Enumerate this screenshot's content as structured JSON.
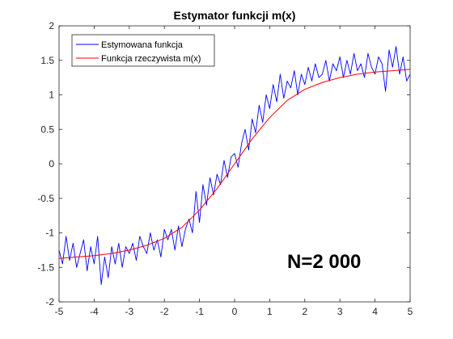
{
  "chart_data": {
    "type": "line",
    "title": "Estymator funkcji m(x)",
    "xlabel": "",
    "ylabel": "",
    "xlim": [
      -5,
      5
    ],
    "ylim": [
      -2,
      2
    ],
    "x_ticks": [
      -5,
      -4,
      -3,
      -2,
      -1,
      0,
      1,
      2,
      3,
      4,
      5
    ],
    "y_ticks": [
      -2,
      -1.5,
      -1,
      -0.5,
      0,
      0.5,
      1,
      1.5,
      2
    ],
    "grid": false,
    "legend_position": "top-left",
    "annotation": "N=2 000",
    "series": [
      {
        "name": "Estymowana funkcja",
        "color": "#0000ff",
        "x": [
          -5.0,
          -4.9,
          -4.8,
          -4.7,
          -4.6,
          -4.5,
          -4.4,
          -4.3,
          -4.2,
          -4.1,
          -4.0,
          -3.9,
          -3.8,
          -3.7,
          -3.6,
          -3.5,
          -3.4,
          -3.3,
          -3.2,
          -3.1,
          -3.0,
          -2.9,
          -2.8,
          -2.7,
          -2.6,
          -2.5,
          -2.4,
          -2.3,
          -2.2,
          -2.1,
          -2.0,
          -1.9,
          -1.8,
          -1.7,
          -1.6,
          -1.5,
          -1.4,
          -1.3,
          -1.2,
          -1.1,
          -1.0,
          -0.9,
          -0.8,
          -0.7,
          -0.6,
          -0.5,
          -0.4,
          -0.3,
          -0.2,
          -0.1,
          0.0,
          0.1,
          0.2,
          0.3,
          0.4,
          0.5,
          0.6,
          0.7,
          0.8,
          0.9,
          1.0,
          1.1,
          1.2,
          1.3,
          1.4,
          1.5,
          1.6,
          1.7,
          1.8,
          1.9,
          2.0,
          2.1,
          2.2,
          2.3,
          2.4,
          2.5,
          2.6,
          2.7,
          2.8,
          2.9,
          3.0,
          3.1,
          3.2,
          3.3,
          3.4,
          3.5,
          3.6,
          3.7,
          3.8,
          3.9,
          4.0,
          4.1,
          4.2,
          4.3,
          4.4,
          4.5,
          4.6,
          4.7,
          4.8,
          4.9,
          5.0
        ],
        "y": [
          -1.25,
          -1.45,
          -1.05,
          -1.4,
          -1.15,
          -1.5,
          -1.3,
          -1.1,
          -1.55,
          -1.2,
          -1.45,
          -1.05,
          -1.75,
          -1.35,
          -1.65,
          -1.2,
          -1.45,
          -1.15,
          -1.5,
          -1.2,
          -1.3,
          -1.15,
          -1.4,
          -1.05,
          -1.2,
          -1.3,
          -1.0,
          -1.25,
          -1.1,
          -1.35,
          -0.95,
          -1.1,
          -0.95,
          -1.25,
          -0.9,
          -1.2,
          -0.95,
          -0.8,
          -1.0,
          -0.4,
          -0.85,
          -0.3,
          -0.6,
          -0.2,
          -0.45,
          -0.15,
          -0.3,
          0.05,
          -0.2,
          0.1,
          0.15,
          -0.05,
          0.3,
          0.5,
          0.2,
          0.65,
          0.45,
          0.85,
          0.6,
          1.0,
          0.8,
          1.15,
          0.9,
          1.3,
          0.95,
          1.2,
          1.1,
          1.35,
          1.0,
          1.3,
          1.15,
          1.4,
          1.2,
          1.45,
          1.25,
          1.3,
          1.5,
          1.2,
          1.45,
          1.35,
          1.55,
          1.25,
          1.5,
          1.3,
          1.6,
          1.35,
          1.45,
          1.25,
          1.6,
          1.4,
          1.3,
          1.55,
          1.45,
          1.05,
          1.65,
          1.4,
          1.7,
          1.3,
          1.55,
          1.2,
          1.3
        ]
      },
      {
        "name": "Funkcja rzeczywista m(x)",
        "color": "#ff0000",
        "x": [
          -5.0,
          -4.5,
          -4.0,
          -3.5,
          -3.0,
          -2.5,
          -2.0,
          -1.5,
          -1.0,
          -0.5,
          0.0,
          0.5,
          1.0,
          1.5,
          2.0,
          2.5,
          3.0,
          3.5,
          4.0,
          4.5,
          5.0
        ],
        "y": [
          -1.37,
          -1.35,
          -1.33,
          -1.3,
          -1.25,
          -1.18,
          -1.08,
          -0.92,
          -0.67,
          -0.36,
          0.0,
          0.36,
          0.67,
          0.92,
          1.08,
          1.18,
          1.25,
          1.3,
          1.33,
          1.35,
          1.37
        ]
      }
    ]
  }
}
